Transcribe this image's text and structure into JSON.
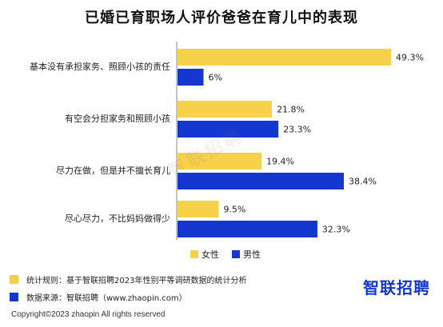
{
  "title": "已婚已育职场人评价爸爸在育儿中的表现",
  "watermark": "智联招聘",
  "colors": {
    "female": "#f8d14b",
    "male": "#1437d0"
  },
  "chart_data": {
    "type": "bar",
    "orientation": "horizontal",
    "title": "已婚已育职场人评价爸爸在育儿中的表现",
    "categories": [
      "基本没有承担家务、照顾小孩的责任",
      "有空会分担家务和照顾小孩",
      "尽力在做，但是并不擅长育儿",
      "尽心尽力，不比妈妈做得少"
    ],
    "series": [
      {
        "name": "女性",
        "values": [
          49.3,
          21.8,
          19.4,
          9.5
        ],
        "labels": [
          "49.3%",
          "21.8%",
          "19.4%",
          "9.5%"
        ]
      },
      {
        "name": "男性",
        "values": [
          6,
          23.3,
          38.4,
          32.3
        ],
        "labels": [
          "6%",
          "23.3%",
          "38.4%",
          "32.3%"
        ]
      }
    ],
    "legend": "bottom-center"
  },
  "notes": [
    {
      "text": "统计规则：基于智联招聘2023年性别平等调研数据的统计分析"
    },
    {
      "text": "数据来源：智联招聘（www.zhaopin.com）"
    }
  ],
  "brand": "智联招聘",
  "copyright": "Copyright©2023 zhaopin All rights reserved"
}
